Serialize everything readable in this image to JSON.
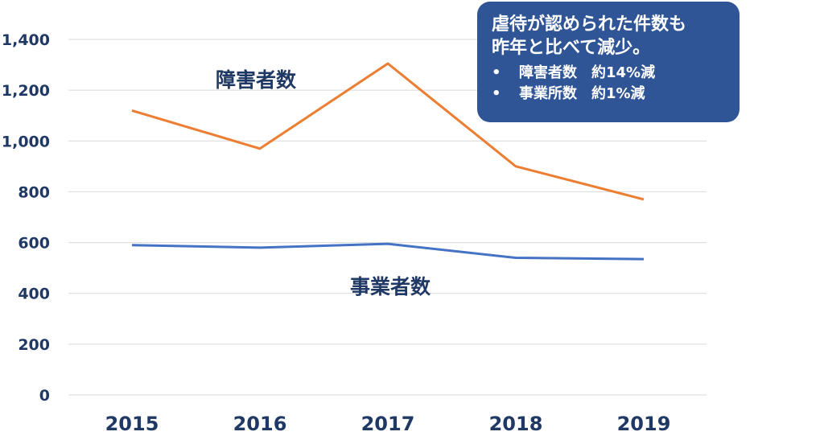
{
  "chart_data": {
    "type": "line",
    "categories": [
      "2015",
      "2016",
      "2017",
      "2018",
      "2019"
    ],
    "series": [
      {
        "name": "障害者数",
        "values": [
          1120,
          970,
          1305,
          900,
          770
        ],
        "color": "#ed7d31"
      },
      {
        "name": "事業者数",
        "values": [
          590,
          580,
          595,
          540,
          535
        ],
        "color": "#4472c4"
      }
    ],
    "yticks": [
      "0",
      "200",
      "400",
      "600",
      "800",
      "1,000",
      "1,200",
      "1,400"
    ],
    "ylim": [
      0,
      1400
    ],
    "grid": true
  },
  "callout": {
    "title_line1": "虐待が認められた件数も",
    "title_line2": "昨年と比べて減少。",
    "bullets": [
      {
        "marker": "•",
        "text": "障害者数　約14%減"
      },
      {
        "marker": "•",
        "text": "事業所数　約1%減"
      }
    ]
  }
}
